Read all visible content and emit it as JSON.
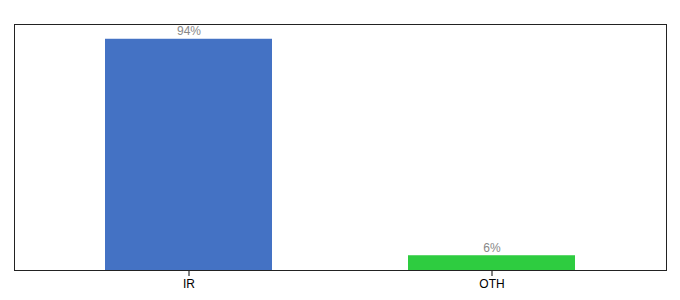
{
  "chart_data": {
    "type": "bar",
    "categories": [
      "IR",
      "OTH"
    ],
    "values": [
      94,
      6
    ],
    "value_labels": [
      "94%",
      "6%"
    ],
    "colors": [
      "#4472c4",
      "#2ecc40"
    ],
    "ylim": [
      0,
      100
    ],
    "tick_labels": "x",
    "data_labels": true
  }
}
